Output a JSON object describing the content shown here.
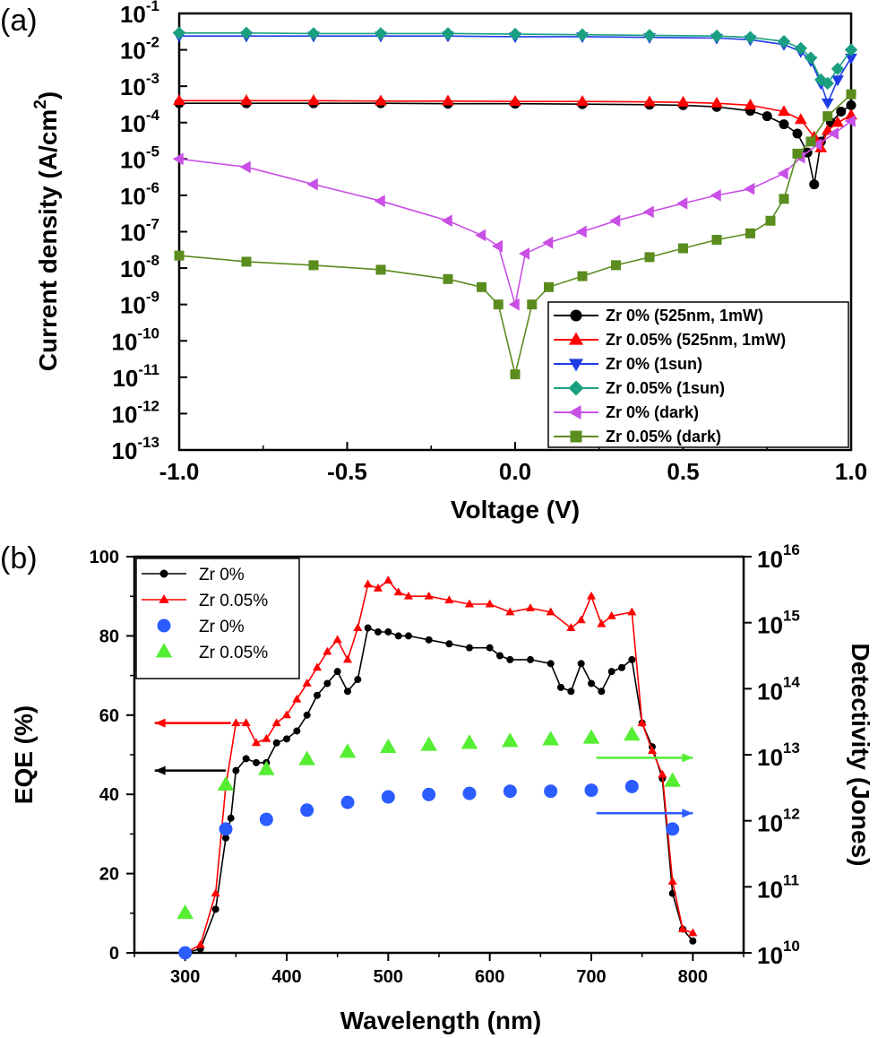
{
  "chart_data": [
    {
      "panel_label": "(a)",
      "type": "line",
      "xlabel": "Voltage (V)",
      "ylabel": "Current density (A/cm²)",
      "ylabel_parts": [
        "Current density (A/cm",
        "2",
        ")"
      ],
      "xlim": [
        -1.0,
        1.0
      ],
      "ylim": [
        1e-13,
        0.1
      ],
      "yscale": "log",
      "x_ticks": [
        "-1.0",
        "-0.5",
        "0.0",
        "0.5",
        "1.0"
      ],
      "y_tick_exponents": [
        "-13",
        "-12",
        "-11",
        "-10",
        "-9",
        "-8",
        "-7",
        "-6",
        "-5",
        "-4",
        "-3",
        "-2",
        "-1"
      ],
      "y_tick_base": "10",
      "legend_position": "lower-right",
      "series": [
        {
          "name": "Zr 0% (525nm, 1mW)",
          "color": "#000000",
          "marker": "circle",
          "x": [
            -1.0,
            -0.8,
            -0.6,
            -0.4,
            -0.2,
            0.0,
            0.2,
            0.4,
            0.5,
            0.6,
            0.7,
            0.75,
            0.8,
            0.84,
            0.87,
            0.89,
            0.91,
            0.94,
            0.97,
            1.0
          ],
          "y": [
            0.00034,
            0.00034,
            0.00034,
            0.00034,
            0.00033,
            0.00033,
            0.00032,
            0.00031,
            0.0003,
            0.00027,
            0.00021,
            0.00015,
            9e-05,
            5e-05,
            1.5e-05,
            2e-06,
            3e-05,
            0.0001,
            0.0002,
            0.0003
          ]
        },
        {
          "name": "Zr 0.05% (525nm, 1mW)",
          "color": "#ff0000",
          "marker": "triangle-up",
          "x": [
            -1.0,
            -0.8,
            -0.6,
            -0.4,
            -0.2,
            0.0,
            0.2,
            0.4,
            0.5,
            0.6,
            0.7,
            0.8,
            0.85,
            0.89,
            0.91,
            0.93,
            0.96,
            1.0
          ],
          "y": [
            0.0004,
            0.0004,
            0.0004,
            0.00039,
            0.00039,
            0.00038,
            0.00038,
            0.00037,
            0.00036,
            0.00034,
            0.0003,
            0.0002,
            0.00012,
            4e-05,
            2e-05,
            6e-05,
            0.0001,
            0.00016
          ]
        },
        {
          "name": "Zr 0% (1sun)",
          "color": "#1e3ce6",
          "marker": "triangle-down",
          "x": [
            -1.0,
            -0.8,
            -0.6,
            -0.4,
            -0.2,
            0.0,
            0.2,
            0.4,
            0.6,
            0.7,
            0.8,
            0.85,
            0.88,
            0.91,
            0.93,
            0.96,
            1.0
          ],
          "y": [
            0.024,
            0.024,
            0.024,
            0.024,
            0.024,
            0.023,
            0.023,
            0.022,
            0.021,
            0.019,
            0.014,
            0.009,
            0.005,
            0.0012,
            0.00035,
            0.0015,
            0.006
          ]
        },
        {
          "name": "Zr 0.05% (1sun)",
          "color": "#1aa080",
          "marker": "diamond",
          "x": [
            -1.0,
            -0.8,
            -0.6,
            -0.4,
            -0.2,
            0.0,
            0.2,
            0.4,
            0.6,
            0.7,
            0.8,
            0.85,
            0.88,
            0.91,
            0.93,
            0.96,
            1.0
          ],
          "y": [
            0.029,
            0.029,
            0.028,
            0.028,
            0.028,
            0.027,
            0.026,
            0.025,
            0.024,
            0.022,
            0.017,
            0.011,
            0.006,
            0.0015,
            0.0012,
            0.003,
            0.01
          ]
        },
        {
          "name": "Zr 0% (dark)",
          "color": "#c850e6",
          "marker": "triangle-left",
          "x": [
            -1.0,
            -0.8,
            -0.6,
            -0.4,
            -0.2,
            -0.1,
            -0.05,
            0.0,
            0.03,
            0.1,
            0.2,
            0.3,
            0.4,
            0.5,
            0.6,
            0.7,
            0.8,
            0.85,
            0.9,
            0.95,
            1.0
          ],
          "y": [
            1e-05,
            6e-06,
            2e-06,
            7e-07,
            2e-07,
            8e-08,
            4e-08,
            1e-09,
            2.5e-08,
            5e-08,
            1e-07,
            2e-07,
            3.5e-07,
            6e-07,
            1e-06,
            1.5e-06,
            4e-06,
            1.1e-05,
            2.5e-05,
            5e-05,
            0.00011
          ]
        },
        {
          "name": "Zr 0.05% (dark)",
          "color": "#5a8c1e",
          "marker": "square",
          "x": [
            -1.0,
            -0.8,
            -0.6,
            -0.4,
            -0.2,
            -0.1,
            -0.05,
            0.0,
            0.05,
            0.1,
            0.2,
            0.3,
            0.4,
            0.5,
            0.6,
            0.7,
            0.76,
            0.8,
            0.84,
            0.88,
            0.93,
            1.0
          ],
          "y": [
            2.2e-08,
            1.5e-08,
            1.2e-08,
            9e-09,
            5e-09,
            3e-09,
            1e-09,
            1.2e-11,
            1e-09,
            3e-09,
            6e-09,
            1.2e-08,
            2e-08,
            3.5e-08,
            6e-08,
            9e-08,
            2e-07,
            8e-07,
            1.4e-05,
            3e-05,
            0.00015,
            0.0006
          ]
        }
      ]
    },
    {
      "panel_label": "(b)",
      "type": "line",
      "xlabel": "Wavelength (nm)",
      "ylabel": "EQE (%)",
      "ylabel_right": "Detectivity (Jones)",
      "xlim": [
        250,
        850
      ],
      "ylim": [
        0,
        100
      ],
      "ylim_right": [
        10000000000.0,
        1e+16
      ],
      "yscale_right": "log",
      "x_ticks": [
        "300",
        "400",
        "500",
        "600",
        "700",
        "800"
      ],
      "y_ticks": [
        "0",
        "20",
        "40",
        "60",
        "80",
        "100"
      ],
      "y_right_tick_exponents": [
        "10",
        "11",
        "12",
        "13",
        "14",
        "15",
        "16"
      ],
      "y_right_tick_base": "10",
      "legend_position": "top-left",
      "series": [
        {
          "name": "Zr 0%",
          "color": "#000000",
          "marker": "circle",
          "axis": "left",
          "x": [
            300,
            315,
            330,
            340,
            345,
            350,
            360,
            370,
            380,
            390,
            400,
            410,
            420,
            430,
            440,
            450,
            460,
            470,
            480,
            490,
            500,
            510,
            520,
            540,
            560,
            580,
            600,
            610,
            620,
            640,
            660,
            670,
            680,
            690,
            700,
            710,
            720,
            730,
            740,
            750,
            760,
            770,
            780,
            790,
            800
          ],
          "y": [
            0,
            1,
            11,
            29,
            34,
            46,
            49,
            48,
            48,
            53,
            54,
            56,
            60,
            65,
            68,
            71,
            66,
            69,
            82,
            81,
            81,
            80,
            80,
            79,
            78,
            77,
            77,
            75,
            74,
            74,
            73,
            67,
            66,
            73,
            68,
            66,
            71,
            72,
            74,
            58,
            52,
            44,
            15,
            6,
            3
          ]
        },
        {
          "name": "Zr 0.05%",
          "color": "#ff0000",
          "marker": "triangle-up",
          "axis": "left",
          "x": [
            300,
            315,
            330,
            340,
            350,
            360,
            370,
            380,
            390,
            400,
            410,
            420,
            430,
            440,
            450,
            460,
            470,
            480,
            490,
            500,
            510,
            520,
            540,
            560,
            580,
            600,
            620,
            640,
            660,
            680,
            690,
            700,
            710,
            720,
            740,
            750,
            760,
            770,
            780,
            790,
            800
          ],
          "y": [
            0,
            2,
            15,
            42,
            58,
            58,
            53,
            54,
            58,
            60,
            64,
            68,
            72,
            76,
            79,
            74,
            82,
            93,
            92,
            94,
            91,
            90,
            90,
            89,
            88,
            88,
            86,
            87,
            86,
            82,
            84,
            90,
            83,
            85,
            86,
            58,
            51,
            45,
            18,
            6,
            5
          ]
        },
        {
          "name": "Zr 0%",
          "color": "#2b5cff",
          "marker": "circle",
          "axis": "right",
          "x": [
            300,
            340,
            380,
            420,
            460,
            500,
            540,
            580,
            620,
            660,
            700,
            740,
            780
          ],
          "y": [
            10000000000.0,
            750000000000.0,
            1050000000000.0,
            1450000000000.0,
            1900000000000.0,
            2300000000000.0,
            2500000000000.0,
            2600000000000.0,
            2800000000000.0,
            2800000000000.0,
            2900000000000.0,
            3300000000000.0,
            750000000000.0
          ]
        },
        {
          "name": "Zr 0.05%",
          "color": "#55ee33",
          "marker": "triangle-up",
          "axis": "right",
          "x": [
            300,
            340,
            380,
            420,
            460,
            500,
            540,
            580,
            620,
            660,
            700,
            740,
            780
          ],
          "y": [
            40000000000.0,
            3500000000000.0,
            6000000000000.0,
            8500000000000.0,
            11000000000000.0,
            13000000000000.0,
            14000000000000.0,
            15000000000000.0,
            16000000000000.0,
            17000000000000.0,
            18000000000000.0,
            20000000000000.0,
            4000000000000.0
          ]
        }
      ],
      "annotation_arrows": [
        {
          "color": "#ff0000",
          "from_x": 345,
          "to_x": 270,
          "y_left": 58,
          "points": "left"
        },
        {
          "color": "#000000",
          "from_x": 340,
          "to_x": 270,
          "y_left": 46,
          "points": "left"
        },
        {
          "color": "#55ee33",
          "from_x": 705,
          "to_x": 800,
          "y_right": 9000000000000.0,
          "points": "right"
        },
        {
          "color": "#2b5cff",
          "from_x": 705,
          "to_x": 800,
          "y_right": 1300000000000.0,
          "points": "right"
        }
      ]
    }
  ]
}
